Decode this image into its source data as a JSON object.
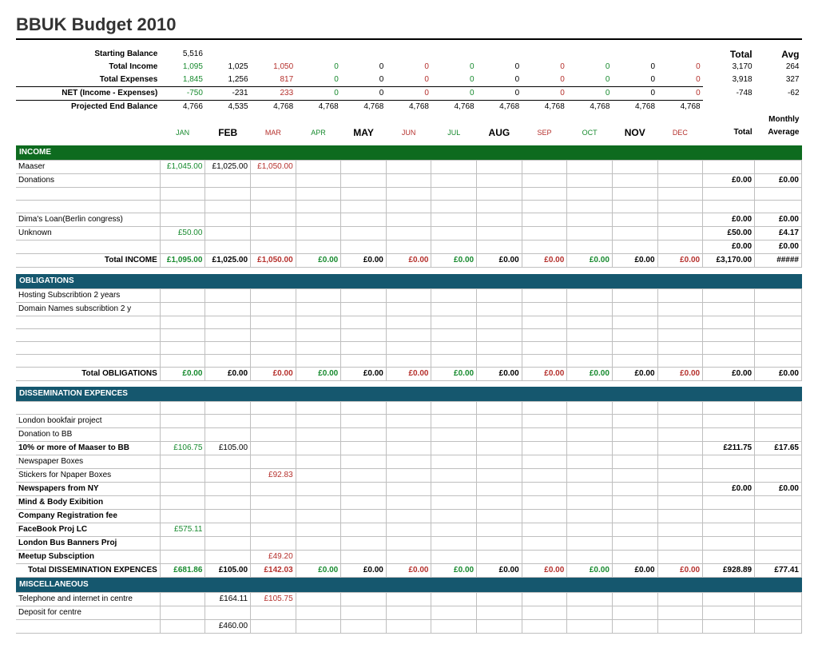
{
  "title": "BBUK Budget 2010",
  "colors": {
    "green_section": "#0e6b1f",
    "teal_section": "#15576e",
    "pos": "#178a2e",
    "neg": "#b5302c",
    "brown": "#7d4a2b",
    "grid": "#bfbfbf"
  },
  "summary": {
    "start_label": "Starting Balance",
    "start_val": "5,516",
    "income_label": "Total Income",
    "income_vals": [
      "1,095",
      "1,025",
      "1,050",
      "0",
      "0",
      "0",
      "0",
      "0",
      "0",
      "0",
      "0",
      "0"
    ],
    "income_total": "3,170",
    "income_avg": "264",
    "exp_label": "Total Expenses",
    "exp_vals": [
      "1,845",
      "1,256",
      "817",
      "0",
      "0",
      "0",
      "0",
      "0",
      "0",
      "0",
      "0",
      "0"
    ],
    "exp_total": "3,918",
    "exp_avg": "327",
    "net_label": "NET (Income - Expenses)",
    "net_vals": [
      "-750",
      "-231",
      "233",
      "0",
      "0",
      "0",
      "0",
      "0",
      "0",
      "0",
      "0",
      "0"
    ],
    "net_total": "-748",
    "net_avg": "-62",
    "proj_label": "Projected End Balance",
    "proj_vals": [
      "4,766",
      "4,535",
      "4,768",
      "4,768",
      "4,768",
      "4,768",
      "4,768",
      "4,768",
      "4,768",
      "4,768",
      "4,768",
      "4,768"
    ],
    "tot_head": "Total",
    "avg_head": "Avg",
    "monthly_label": "Monthly",
    "tot2": "Total",
    "avg2": "Average"
  },
  "months": [
    "JAN",
    "FEB",
    "MAR",
    "APR",
    "MAY",
    "JUN",
    "JUL",
    "AUG",
    "SEP",
    "OCT",
    "NOV",
    "DEC"
  ],
  "month_big": [
    false,
    true,
    false,
    false,
    true,
    false,
    false,
    true,
    false,
    false,
    true,
    false
  ],
  "month_color": [
    "c-green",
    "",
    "c-red",
    "c-green",
    "",
    "c-red",
    "c-green",
    "",
    "c-red",
    "c-green",
    "",
    "c-red"
  ],
  "summary_color": [
    "c-green",
    "",
    "c-red",
    "c-green",
    "",
    "c-red",
    "c-green",
    "",
    "c-red",
    "c-green",
    "",
    "c-red"
  ],
  "sections": {
    "income": {
      "head": "INCOME",
      "rows": [
        {
          "label": "Maaser",
          "v": [
            "£1,045.00",
            "£1,025.00",
            "£1,050.00",
            "",
            "",
            "",
            "",
            "",
            "",
            "",
            "",
            ""
          ],
          "t": "",
          "a": ""
        },
        {
          "label": "Donations",
          "v": [
            "",
            "",
            "",
            "",
            "",
            "",
            "",
            "",
            "",
            "",
            "",
            ""
          ],
          "t": "£0.00",
          "a": "£0.00"
        },
        {
          "label": "",
          "v": [
            "",
            "",
            "",
            "",
            "",
            "",
            "",
            "",
            "",
            "",
            "",
            ""
          ],
          "t": "",
          "a": ""
        },
        {
          "label": "",
          "v": [
            "",
            "",
            "",
            "",
            "",
            "",
            "",
            "",
            "",
            "",
            "",
            ""
          ],
          "t": "",
          "a": ""
        },
        {
          "label": "Dima's Loan(Berlin congress)",
          "v": [
            "",
            "",
            "",
            "",
            "",
            "",
            "",
            "",
            "",
            "",
            "",
            ""
          ],
          "t": "£0.00",
          "a": "£0.00"
        },
        {
          "label": "Unknown",
          "v": [
            "£50.00",
            "",
            "",
            "",
            "",
            "",
            "",
            "",
            "",
            "",
            "",
            ""
          ],
          "t": "£50.00",
          "a": "£4.17"
        },
        {
          "label": "",
          "v": [
            "",
            "",
            "",
            "",
            "",
            "",
            "",
            "",
            "",
            "",
            "",
            ""
          ],
          "t": "£0.00",
          "a": "£0.00"
        }
      ],
      "total_label": "Total INCOME",
      "total_v": [
        "£1,095.00",
        "£1,025.00",
        "£1,050.00",
        "£0.00",
        "£0.00",
        "£0.00",
        "£0.00",
        "£0.00",
        "£0.00",
        "£0.00",
        "£0.00",
        "£0.00"
      ],
      "total_t": "£3,170.00",
      "total_a": "#####"
    },
    "oblig": {
      "head": "OBLIGATIONS",
      "rows": [
        {
          "label": "Hosting Subscribtion 2 years",
          "v": [
            "",
            "",
            "",
            "",
            "",
            "",
            "",
            "",
            "",
            "",
            "",
            ""
          ],
          "t": "",
          "a": ""
        },
        {
          "label": "Domain Names subscribtion 2 y",
          "v": [
            "",
            "",
            "",
            "",
            "",
            "",
            "",
            "",
            "",
            "",
            "",
            ""
          ],
          "t": "",
          "a": ""
        },
        {
          "label": "",
          "v": [
            "",
            "",
            "",
            "",
            "",
            "",
            "",
            "",
            "",
            "",
            "",
            ""
          ],
          "t": "",
          "a": ""
        },
        {
          "label": "",
          "v": [
            "",
            "",
            "",
            "",
            "",
            "",
            "",
            "",
            "",
            "",
            "",
            ""
          ],
          "t": "",
          "a": ""
        },
        {
          "label": "",
          "v": [
            "",
            "",
            "",
            "",
            "",
            "",
            "",
            "",
            "",
            "",
            "",
            ""
          ],
          "t": "",
          "a": ""
        },
        {
          "label": "",
          "v": [
            "",
            "",
            "",
            "",
            "",
            "",
            "",
            "",
            "",
            "",
            "",
            ""
          ],
          "t": "",
          "a": ""
        }
      ],
      "total_label": "Total OBLIGATIONS",
      "total_v": [
        "£0.00",
        "£0.00",
        "£0.00",
        "£0.00",
        "£0.00",
        "£0.00",
        "£0.00",
        "£0.00",
        "£0.00",
        "£0.00",
        "£0.00",
        "£0.00"
      ],
      "total_t": "£0.00",
      "total_a": "£0.00"
    },
    "dissem": {
      "head": "DISSEMINATION EXPENCES",
      "rows": [
        {
          "label": "",
          "v": [
            "",
            "",
            "",
            "",
            "",
            "",
            "",
            "",
            "",
            "",
            "",
            ""
          ],
          "t": "",
          "a": ""
        },
        {
          "label": "London bookfair project",
          "v": [
            "",
            "",
            "",
            "",
            "",
            "",
            "",
            "",
            "",
            "",
            "",
            ""
          ],
          "t": "",
          "a": ""
        },
        {
          "label": "Donation to BB",
          "v": [
            "",
            "",
            "",
            "",
            "",
            "",
            "",
            "",
            "",
            "",
            "",
            ""
          ],
          "t": "",
          "a": ""
        },
        {
          "label": "10% or more of Maaser to BB",
          "bold": true,
          "v": [
            "£106.75",
            "£105.00",
            "",
            "",
            "",
            "",
            "",
            "",
            "",
            "",
            "",
            ""
          ],
          "t": "£211.75",
          "a": "£17.65"
        },
        {
          "label": "Newspaper Boxes",
          "v": [
            "",
            "",
            "",
            "",
            "",
            "",
            "",
            "",
            "",
            "",
            "",
            ""
          ],
          "t": "",
          "a": ""
        },
        {
          "label": "Stickers for Npaper Boxes",
          "v": [
            "",
            "",
            "£92.83",
            "",
            "",
            "",
            "",
            "",
            "",
            "",
            "",
            ""
          ],
          "t": "",
          "a": ""
        },
        {
          "label": "Newspapers from NY",
          "bold": true,
          "v": [
            "",
            "",
            "",
            "",
            "",
            "",
            "",
            "",
            "",
            "",
            "",
            ""
          ],
          "t": "£0.00",
          "a": "£0.00"
        },
        {
          "label": "Mind & Body Exibition",
          "bold": true,
          "v": [
            "",
            "",
            "",
            "",
            "",
            "",
            "",
            "",
            "",
            "",
            "",
            ""
          ],
          "t": "",
          "a": ""
        },
        {
          "label": "Company Registration fee",
          "bold": true,
          "v": [
            "",
            "",
            "",
            "",
            "",
            "",
            "",
            "",
            "",
            "",
            "",
            ""
          ],
          "t": "",
          "a": ""
        },
        {
          "label": "FaceBook Proj LC",
          "bold": true,
          "v": [
            "£575.11",
            "",
            "",
            "",
            "",
            "",
            "",
            "",
            "",
            "",
            "",
            ""
          ],
          "t": "",
          "a": ""
        },
        {
          "label": "London Bus Banners Proj",
          "bold": true,
          "v": [
            "",
            "",
            "",
            "",
            "",
            "",
            "",
            "",
            "",
            "",
            "",
            ""
          ],
          "t": "",
          "a": ""
        },
        {
          "label": "Meetup Subsciption",
          "bold": true,
          "v": [
            "",
            "",
            "£49.20",
            "",
            "",
            "",
            "",
            "",
            "",
            "",
            "",
            ""
          ],
          "t": "",
          "a": ""
        }
      ],
      "total_label": "Total DISSEMINATION EXPENCES",
      "total_v": [
        "£681.86",
        "£105.00",
        "£142.03",
        "£0.00",
        "£0.00",
        "£0.00",
        "£0.00",
        "£0.00",
        "£0.00",
        "£0.00",
        "£0.00",
        "£0.00"
      ],
      "total_t": "£928.89",
      "total_a": "£77.41"
    },
    "misc": {
      "head": "MISCELLANEOUS",
      "rows": [
        {
          "label": "Telephone and internet in centre",
          "v": [
            "",
            "£164.11",
            "£105.75",
            "",
            "",
            "",
            "",
            "",
            "",
            "",
            "",
            ""
          ],
          "t": "",
          "a": ""
        },
        {
          "label": "Deposit for centre",
          "v": [
            "",
            "",
            "",
            "",
            "",
            "",
            "",
            "",
            "",
            "",
            "",
            ""
          ],
          "t": "",
          "a": ""
        },
        {
          "label": "",
          "v": [
            "",
            "£460.00",
            "",
            "",
            "",
            "",
            "",
            "",
            "",
            "",
            "",
            ""
          ],
          "t": "",
          "a": ""
        }
      ]
    }
  }
}
